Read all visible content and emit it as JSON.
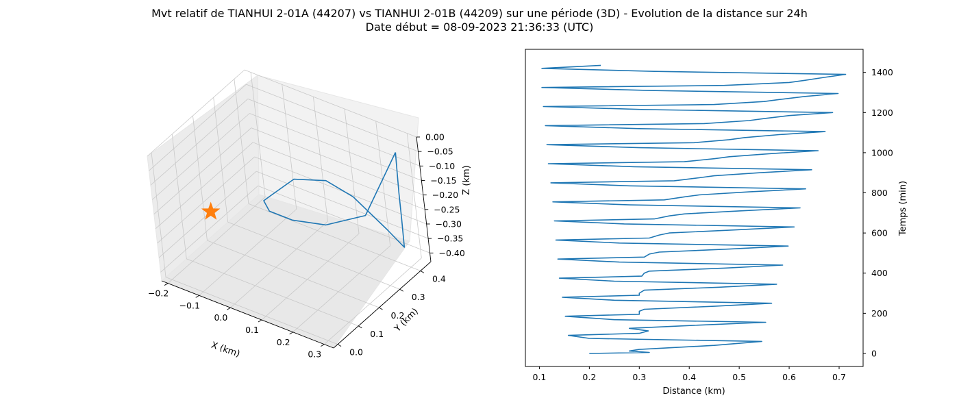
{
  "title": {
    "line1": "Mvt relatif de TIANHUI 2-01A (44207) vs TIANHUI 2-01B (44209) sur une période (3D) - Evolution de la distance sur 24h",
    "line2": "Date début = 08-09-2023 21:36:33 (UTC)"
  },
  "colors": {
    "series": "#1f77b4",
    "marker": "#ff7f0e",
    "grid": "#b0b0b0",
    "pane": "#f2f2f2"
  },
  "chart_data": [
    {
      "type": "line3d",
      "xlabel": "X (km)",
      "ylabel": "Y (km)",
      "zlabel": "Z (km)",
      "xlim": [
        -0.22,
        0.33
      ],
      "ylim": [
        -0.02,
        0.45
      ],
      "zlim": [
        -0.43,
        0.0
      ],
      "xticks": [
        "−0.2",
        "−0.1",
        "0.0",
        "0.1",
        "0.2",
        "0.3"
      ],
      "yticks": [
        "0.0",
        "0.1",
        "0.2",
        "0.3",
        "0.4"
      ],
      "zticks": [
        "0.00",
        "−0.05",
        "−0.10",
        "−0.15",
        "−0.20",
        "−0.25",
        "−0.30",
        "−0.35",
        "−0.40"
      ],
      "grid": true,
      "series": [
        {
          "points": [
            [
              0.298,
              0.392,
              -0.03
            ],
            [
              0.296,
              0.392,
              -0.09
            ],
            [
              0.294,
              0.392,
              -0.17
            ],
            [
              0.293,
              0.392,
              -0.26
            ],
            [
              0.291,
              0.392,
              -0.36
            ],
            [
              0.24,
              0.392,
              -0.32
            ],
            [
              0.139,
              0.392,
              -0.25
            ],
            [
              0.054,
              0.392,
              -0.23
            ],
            [
              -0.053,
              0.392,
              -0.27
            ],
            [
              -0.135,
              0.392,
              -0.36
            ],
            [
              -0.162,
              0.392,
              -0.39
            ],
            [
              -0.147,
              0.392,
              -0.42
            ],
            [
              -0.074,
              0.392,
              -0.42
            ],
            [
              0.037,
              0.392,
              -0.39
            ],
            [
              0.173,
              0.392,
              -0.3
            ],
            [
              0.298,
              0.392,
              -0.03
            ]
          ]
        }
      ],
      "marker": {
        "shape": "star",
        "point": [
          -0.044,
          0.0,
          -0.13
        ]
      }
    },
    {
      "type": "line",
      "xlabel": "Distance (km)",
      "ylabel": "Temps (min)",
      "xlim": [
        0.072,
        0.748
      ],
      "ylim": [
        -65,
        1515
      ],
      "xticks": [
        0.1,
        0.2,
        0.3,
        0.4,
        0.5,
        0.6,
        0.7
      ],
      "yticks": [
        0,
        200,
        400,
        600,
        800,
        1000,
        1200,
        1400
      ],
      "yaxis_position": "right",
      "grid": false,
      "series": [
        {
          "points": [
            [
              0.2,
              0
            ],
            [
              0.32,
              5
            ],
            [
              0.28,
              12
            ],
            [
              0.3,
              20
            ],
            [
              0.45,
              40
            ],
            [
              0.545,
              60
            ],
            [
              0.2,
              75
            ],
            [
              0.158,
              90
            ],
            [
              0.3,
              100
            ],
            [
              0.318,
              112
            ],
            [
              0.28,
              125
            ],
            [
              0.41,
              140
            ],
            [
              0.553,
              155
            ],
            [
              0.25,
              168
            ],
            [
              0.152,
              185
            ],
            [
              0.3,
              195
            ],
            [
              0.3,
              210
            ],
            [
              0.31,
              220
            ],
            [
              0.45,
              235
            ],
            [
              0.565,
              250
            ],
            [
              0.25,
              265
            ],
            [
              0.146,
              280
            ],
            [
              0.3,
              290
            ],
            [
              0.3,
              300
            ],
            [
              0.31,
              315
            ],
            [
              0.46,
              330
            ],
            [
              0.575,
              345
            ],
            [
              0.25,
              360
            ],
            [
              0.14,
              375
            ],
            [
              0.305,
              385
            ],
            [
              0.31,
              400
            ],
            [
              0.32,
              410
            ],
            [
              0.47,
              425
            ],
            [
              0.587,
              440
            ],
            [
              0.26,
              455
            ],
            [
              0.137,
              470
            ],
            [
              0.31,
              480
            ],
            [
              0.32,
              495
            ],
            [
              0.34,
              505
            ],
            [
              0.48,
              520
            ],
            [
              0.598,
              535
            ],
            [
              0.26,
              550
            ],
            [
              0.133,
              565
            ],
            [
              0.32,
              575
            ],
            [
              0.34,
              590
            ],
            [
              0.36,
              600
            ],
            [
              0.49,
              615
            ],
            [
              0.61,
              630
            ],
            [
              0.27,
              645
            ],
            [
              0.13,
              660
            ],
            [
              0.33,
              670
            ],
            [
              0.36,
              685
            ],
            [
              0.39,
              695
            ],
            [
              0.5,
              710
            ],
            [
              0.622,
              725
            ],
            [
              0.28,
              740
            ],
            [
              0.127,
              755
            ],
            [
              0.35,
              765
            ],
            [
              0.39,
              780
            ],
            [
              0.42,
              790
            ],
            [
              0.52,
              805
            ],
            [
              0.633,
              820
            ],
            [
              0.28,
              835
            ],
            [
              0.123,
              850
            ],
            [
              0.37,
              860
            ],
            [
              0.42,
              875
            ],
            [
              0.45,
              885
            ],
            [
              0.54,
              900
            ],
            [
              0.645,
              915
            ],
            [
              0.29,
              930
            ],
            [
              0.118,
              945
            ],
            [
              0.39,
              955
            ],
            [
              0.45,
              970
            ],
            [
              0.48,
              980
            ],
            [
              0.56,
              995
            ],
            [
              0.658,
              1010
            ],
            [
              0.3,
              1025
            ],
            [
              0.115,
              1040
            ],
            [
              0.41,
              1050
            ],
            [
              0.48,
              1065
            ],
            [
              0.51,
              1075
            ],
            [
              0.58,
              1090
            ],
            [
              0.672,
              1105
            ],
            [
              0.3,
              1120
            ],
            [
              0.112,
              1135
            ],
            [
              0.43,
              1145
            ],
            [
              0.52,
              1160
            ],
            [
              0.55,
              1170
            ],
            [
              0.6,
              1185
            ],
            [
              0.687,
              1200
            ],
            [
              0.31,
              1215
            ],
            [
              0.108,
              1230
            ],
            [
              0.45,
              1240
            ],
            [
              0.55,
              1255
            ],
            [
              0.58,
              1265
            ],
            [
              0.63,
              1280
            ],
            [
              0.698,
              1295
            ],
            [
              0.32,
              1310
            ],
            [
              0.105,
              1325
            ],
            [
              0.47,
              1335
            ],
            [
              0.6,
              1350
            ],
            [
              0.63,
              1360
            ],
            [
              0.67,
              1375
            ],
            [
              0.713,
              1390
            ],
            [
              0.33,
              1405
            ],
            [
              0.105,
              1420
            ],
            [
              0.223,
              1435
            ]
          ]
        }
      ]
    }
  ]
}
